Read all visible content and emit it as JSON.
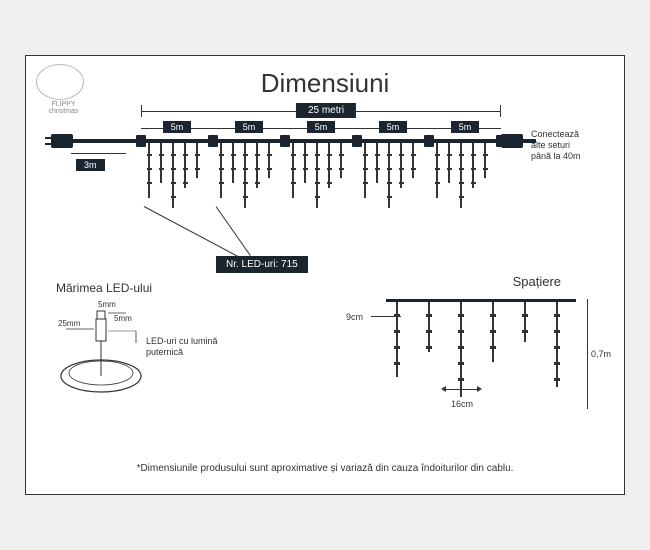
{
  "title": "Dimensiuni",
  "logo_line1": "FLIPPY",
  "logo_line2": "christmas",
  "total_width": "25 metri",
  "section_width": "5m",
  "section_count": 5,
  "lead_length": "3m",
  "connect_text": "Conectează\nalte seturi\npână la 40m",
  "led_count_label": "Nr. LED-uri: 715",
  "led_size": {
    "title": "Mărimea LED-ului",
    "height": "5mm",
    "width": "5mm",
    "depth": "25mm",
    "desc": "LED-uri cu lumină\nputernică"
  },
  "spacing": {
    "title": "Spațiere",
    "horizontal_gap": "9cm",
    "drop_gap": "16cm",
    "drop_height": "0,7m"
  },
  "footnote": "*Dimensiunile produsului sunt aproximative și variază din cauza îndoiturilor din cablu.",
  "colors": {
    "dark": "#1a2530",
    "stroke": "#333333",
    "bg": "#ffffff",
    "outer_bg": "#f0f0f0",
    "logo_gray": "#888888"
  },
  "main_icicle_pattern": [
    55,
    40,
    65,
    45,
    35
  ],
  "spacing_icicle_pattern": [
    75,
    50,
    95,
    60,
    40,
    85
  ]
}
